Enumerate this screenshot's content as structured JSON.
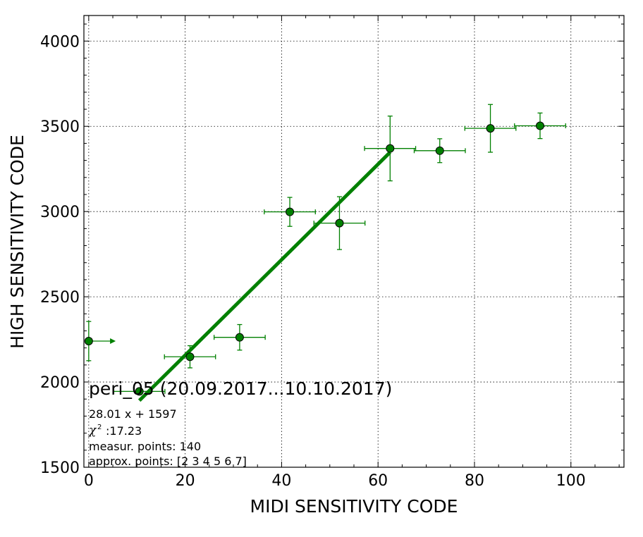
{
  "chart_data": {
    "type": "scatter",
    "xlabel": "MIDI SENSITIVITY CODE",
    "ylabel": "HIGH SENSITIVITY CODE",
    "xlim": [
      -1,
      111
    ],
    "ylim": [
      1500,
      4150
    ],
    "x_ticks": [
      0,
      20,
      40,
      60,
      80,
      100
    ],
    "y_ticks": [
      1500,
      2000,
      2500,
      3000,
      3500,
      4000
    ],
    "grid": true,
    "colors": {
      "points": "#008000",
      "fit": "#008000",
      "errorbars": "#008000",
      "marker_edge": "#000000"
    },
    "points": [
      {
        "x": 0,
        "y": 2240,
        "xerr": 5.3,
        "yerr": 115,
        "x_lower_limit": true
      },
      {
        "x": 10.5,
        "y": 1945,
        "xerr": 5.3,
        "yerr": 0
      },
      {
        "x": 21,
        "y": 2148,
        "xerr": 5.3,
        "yerr": 65
      },
      {
        "x": 31.3,
        "y": 2262,
        "xerr": 5.3,
        "yerr": 75
      },
      {
        "x": 41.7,
        "y": 2998,
        "xerr": 5.3,
        "yerr": 85
      },
      {
        "x": 52,
        "y": 2932,
        "xerr": 5.3,
        "yerr": 155
      },
      {
        "x": 62.5,
        "y": 3370,
        "xerr": 5.3,
        "yerr": 190
      },
      {
        "x": 72.8,
        "y": 3357,
        "xerr": 5.3,
        "yerr": 70
      },
      {
        "x": 83.3,
        "y": 3488,
        "xerr": 5.3,
        "yerr": 140
      },
      {
        "x": 93.6,
        "y": 3503,
        "xerr": 5.3,
        "yerr": 75
      }
    ],
    "fit": {
      "slope": 28.01,
      "intercept": 1597,
      "x_range": [
        10.5,
        62.5
      ]
    },
    "annotations": {
      "title": "peri_05 (20.09.2017...10.10.2017)",
      "equation": "28.01 x + 1597",
      "chi2": ":17.23",
      "measur_points": "measur. points: 140",
      "approx_points": "approx. points: [2 3 4 5 6 7]"
    }
  }
}
